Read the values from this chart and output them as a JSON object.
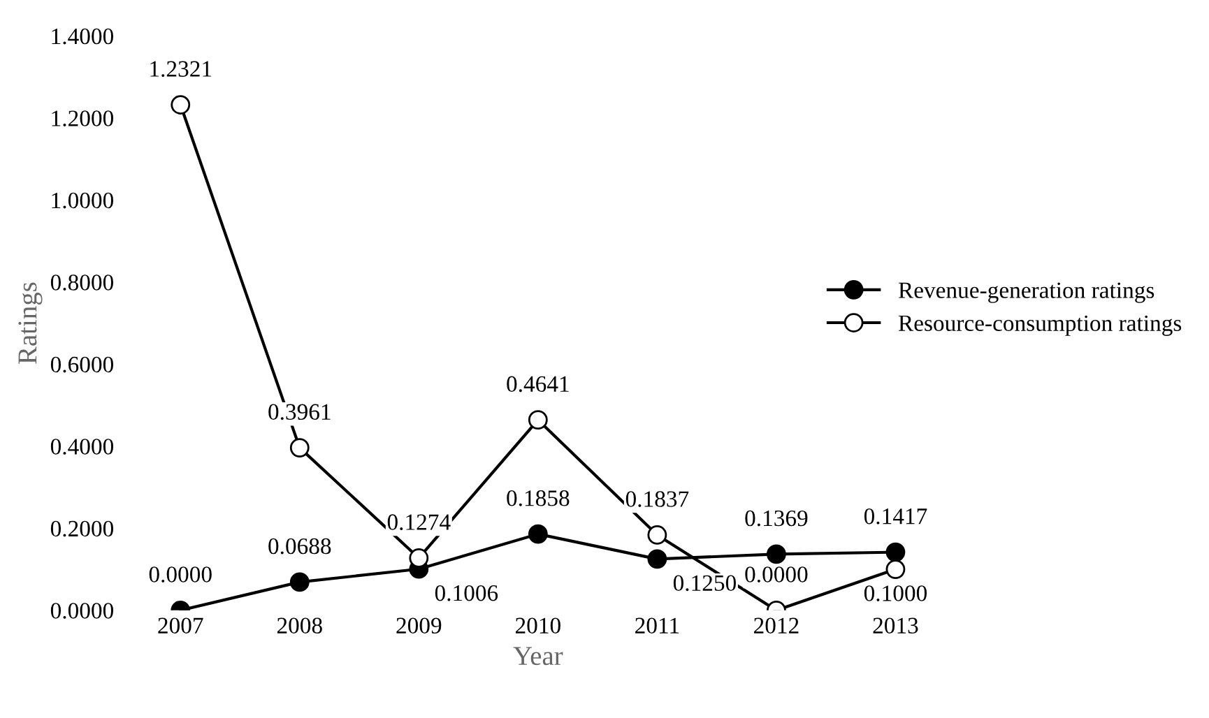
{
  "chart_data": {
    "type": "line",
    "xlabel": "Year",
    "ylabel": "Ratings",
    "categories": [
      "2007",
      "2008",
      "2009",
      "2010",
      "2011",
      "2012",
      "2013"
    ],
    "series": [
      {
        "name": "Revenue-generation ratings",
        "color": "#000000",
        "values": [
          0.0,
          0.0688,
          0.1006,
          0.1858,
          0.125,
          0.1369,
          0.1417
        ],
        "value_labels": [
          "0.0000",
          "0.0688",
          "0.1006",
          "0.1858",
          "0.1250",
          "0.1369",
          "0.1417"
        ]
      },
      {
        "name": "Resource-consumption ratings",
        "color": "#000000",
        "values": [
          1.2321,
          0.3961,
          0.1274,
          0.4641,
          0.1837,
          0.0,
          0.1
        ],
        "value_labels": [
          "1.2321",
          "0.3961",
          "0.1274",
          "0.4641",
          "0.1837",
          "0.0000",
          "0.1000"
        ]
      }
    ],
    "ylim": [
      0,
      1.4
    ],
    "yticks": [
      {
        "value": 0,
        "label": "0.0000"
      },
      {
        "value": 0.2,
        "label": "0.2000"
      },
      {
        "value": 0.4,
        "label": "0.4000"
      },
      {
        "value": 0.6,
        "label": "0.6000"
      },
      {
        "value": 0.8,
        "label": "0.8000"
      },
      {
        "value": 1.0,
        "label": "1.0000"
      },
      {
        "value": 1.2,
        "label": "1.2000"
      },
      {
        "value": 1.4,
        "label": "1.4000"
      }
    ],
    "grid": false,
    "legend": "right",
    "marker": "circle",
    "line_style": "solid"
  }
}
